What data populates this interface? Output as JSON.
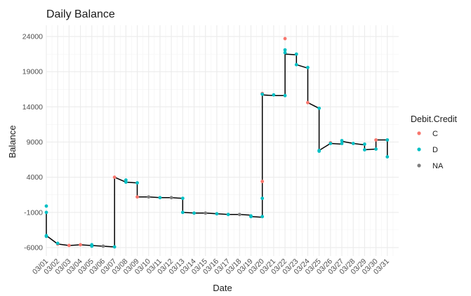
{
  "chart_data": {
    "type": "scatter",
    "title": "Daily Balance",
    "xlabel": "Date",
    "ylabel": "Balance",
    "xlim": [
      "2021-02-29",
      "2021-04-01"
    ],
    "ylim": [
      -7200,
      25600
    ],
    "yticks": [
      -6000,
      -1000,
      4000,
      9000,
      14000,
      19000,
      24000
    ],
    "ytick_labels": [
      "-6000",
      "-1000",
      "4000",
      "9000",
      "14000",
      "19000",
      "24000"
    ],
    "xtick_labels": [
      "03/01",
      "03/02",
      "03/03",
      "03/04",
      "03/05",
      "03/06",
      "03/07",
      "03/08",
      "03/09",
      "03/10",
      "03/11",
      "03/12",
      "03/13",
      "03/14",
      "03/15",
      "03/16",
      "03/17",
      "03/18",
      "03/19",
      "03/20",
      "03/21",
      "03/22",
      "03/23",
      "03/24",
      "03/25",
      "03/26",
      "03/27",
      "03/28",
      "03/29",
      "03/30",
      "03/31"
    ],
    "grid": true,
    "legend": {
      "title": "Debit.Credit",
      "position": "right",
      "entries": [
        {
          "label": "C",
          "color": "#F8766D"
        },
        {
          "label": "D",
          "color": "#00BFC4"
        },
        {
          "label": "NA",
          "color": "#7F7F7F"
        }
      ]
    },
    "line_color": "#000000",
    "line_points": [
      [
        "2021-03-01",
        -1000
      ],
      [
        "2021-03-01",
        -4300
      ],
      [
        "2021-03-02",
        -5500
      ],
      [
        "2021-03-03",
        -5700
      ],
      [
        "2021-03-04",
        -5600
      ],
      [
        "2021-03-05",
        -5700
      ],
      [
        "2021-03-06",
        -5800
      ],
      [
        "2021-03-07",
        -5900
      ],
      [
        "2021-03-07",
        4000
      ],
      [
        "2021-03-08",
        3300
      ],
      [
        "2021-03-09",
        3200
      ],
      [
        "2021-03-09",
        1200
      ],
      [
        "2021-03-10",
        1200
      ],
      [
        "2021-03-11",
        1100
      ],
      [
        "2021-03-12",
        1100
      ],
      [
        "2021-03-13",
        1000
      ],
      [
        "2021-03-13",
        -1000
      ],
      [
        "2021-03-14",
        -1100
      ],
      [
        "2021-03-15",
        -1100
      ],
      [
        "2021-03-16",
        -1200
      ],
      [
        "2021-03-17",
        -1300
      ],
      [
        "2021-03-18",
        -1300
      ],
      [
        "2021-03-19",
        -1400
      ],
      [
        "2021-03-19",
        -1600
      ],
      [
        "2021-03-20",
        -1700
      ],
      [
        "2021-03-20",
        15700
      ],
      [
        "2021-03-21",
        15600
      ],
      [
        "2021-03-22",
        15600
      ],
      [
        "2021-03-22",
        21500
      ],
      [
        "2021-03-23",
        21400
      ],
      [
        "2021-03-23",
        20000
      ],
      [
        "2021-03-24",
        19500
      ],
      [
        "2021-03-24",
        14600
      ],
      [
        "2021-03-25",
        13800
      ],
      [
        "2021-03-25",
        7800
      ],
      [
        "2021-03-26",
        8800
      ],
      [
        "2021-03-27",
        8700
      ],
      [
        "2021-03-27",
        9100
      ],
      [
        "2021-03-28",
        8800
      ],
      [
        "2021-03-29",
        8600
      ],
      [
        "2021-03-29",
        7900
      ],
      [
        "2021-03-30",
        8000
      ],
      [
        "2021-03-30",
        9300
      ],
      [
        "2021-03-31",
        9300
      ],
      [
        "2021-03-31",
        6900
      ]
    ],
    "series": [
      {
        "name": "C",
        "color": "#F8766D",
        "points": [
          [
            "2021-03-02",
            -5500
          ],
          [
            "2021-03-03",
            -5700
          ],
          [
            "2021-03-04",
            -5600
          ],
          [
            "2021-03-07",
            4000
          ],
          [
            "2021-03-09",
            1200
          ],
          [
            "2021-03-20",
            15900
          ],
          [
            "2021-03-20",
            3400
          ],
          [
            "2021-03-22",
            23700
          ],
          [
            "2021-03-24",
            14600
          ],
          [
            "2021-03-26",
            8900
          ],
          [
            "2021-03-30",
            9300
          ]
        ]
      },
      {
        "name": "D",
        "color": "#00BFC4",
        "points": [
          [
            "2021-03-01",
            -100
          ],
          [
            "2021-03-01",
            -1000
          ],
          [
            "2021-03-01",
            -4300
          ],
          [
            "2021-03-01",
            -4400
          ],
          [
            "2021-03-02",
            -5400
          ],
          [
            "2021-03-05",
            -5600
          ],
          [
            "2021-03-05",
            -5800
          ],
          [
            "2021-03-07",
            -5900
          ],
          [
            "2021-03-08",
            3600
          ],
          [
            "2021-03-08",
            3300
          ],
          [
            "2021-03-09",
            3200
          ],
          [
            "2021-03-11",
            1100
          ],
          [
            "2021-03-13",
            1000
          ],
          [
            "2021-03-13",
            -1000
          ],
          [
            "2021-03-14",
            -1100
          ],
          [
            "2021-03-16",
            -1200
          ],
          [
            "2021-03-17",
            -1300
          ],
          [
            "2021-03-19",
            -1500
          ],
          [
            "2021-03-19",
            -1600
          ],
          [
            "2021-03-20",
            1000
          ],
          [
            "2021-03-20",
            -1600
          ],
          [
            "2021-03-20",
            15800
          ],
          [
            "2021-03-21",
            15700
          ],
          [
            "2021-03-22",
            15600
          ],
          [
            "2021-03-22",
            22100
          ],
          [
            "2021-03-22",
            21700
          ],
          [
            "2021-03-23",
            21500
          ],
          [
            "2021-03-23",
            20000
          ],
          [
            "2021-03-24",
            19600
          ],
          [
            "2021-03-25",
            13800
          ],
          [
            "2021-03-25",
            7800
          ],
          [
            "2021-03-25",
            7700
          ],
          [
            "2021-03-26",
            8800
          ],
          [
            "2021-03-27",
            9200
          ],
          [
            "2021-03-27",
            8800
          ],
          [
            "2021-03-28",
            8800
          ],
          [
            "2021-03-29",
            8700
          ],
          [
            "2021-03-29",
            7900
          ],
          [
            "2021-03-30",
            8000
          ],
          [
            "2021-03-31",
            9300
          ],
          [
            "2021-03-31",
            6900
          ]
        ]
      },
      {
        "name": "NA",
        "color": "#7F7F7F",
        "points": [
          [
            "2021-03-06",
            -5800
          ],
          [
            "2021-03-10",
            1200
          ],
          [
            "2021-03-12",
            1100
          ],
          [
            "2021-03-15",
            -1100
          ],
          [
            "2021-03-18",
            -1300
          ]
        ]
      }
    ]
  }
}
